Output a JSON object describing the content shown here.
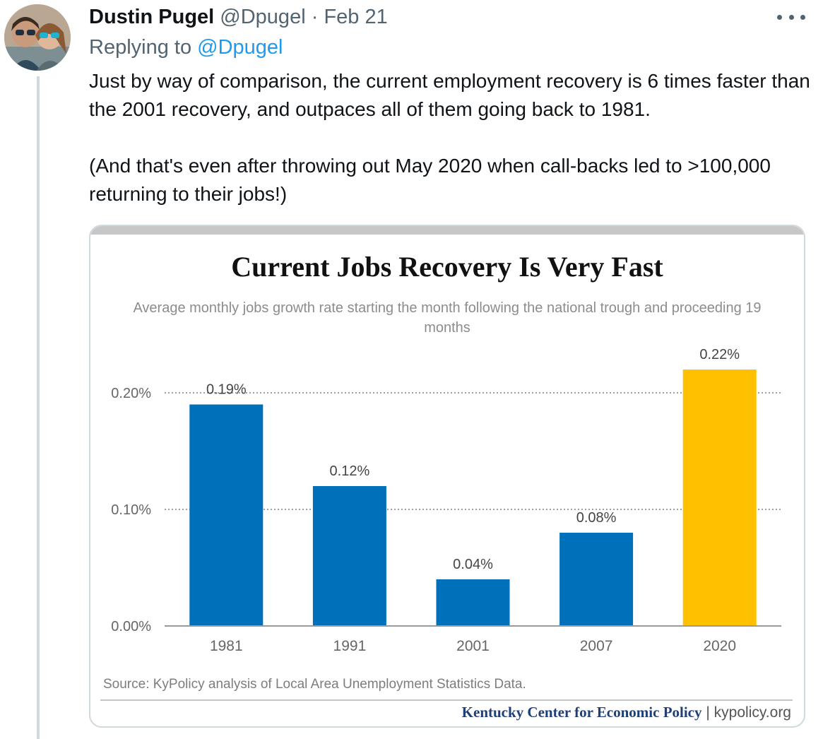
{
  "tweet": {
    "author_name": "Dustin Pugel",
    "author_handle": "@Dpugel",
    "separator": "·",
    "date": "Feb 21",
    "replying_prefix": "Replying to",
    "replying_handle": "@Dpugel",
    "paragraph_1": "Just by way of comparison, the current employment recovery is 6 times faster than the 2001 recovery, and outpaces all of them going back to 1981.",
    "paragraph_2": "(And that's even after throwing out May 2020 when call-backs led to >100,000 returning to their jobs!)",
    "more_icon": "more-horizontal-icon"
  },
  "chart_data": {
    "type": "bar",
    "title": "Current Jobs Recovery Is Very Fast",
    "subtitle": "Average monthly jobs growth rate starting the month following the national trough and proceeding 19 months",
    "categories": [
      "1981",
      "1991",
      "2001",
      "2007",
      "2020"
    ],
    "values": [
      0.19,
      0.12,
      0.04,
      0.08,
      0.22
    ],
    "value_labels": [
      "0.19%",
      "0.12%",
      "0.04%",
      "0.08%",
      "0.22%"
    ],
    "colors": [
      "#0070ba",
      "#0070ba",
      "#0070ba",
      "#0070ba",
      "#ffc000"
    ],
    "yticks": [
      0,
      0.1,
      0.2
    ],
    "ytick_labels": [
      "0.00%",
      "0.10%",
      "0.20%"
    ],
    "ylim": [
      0,
      0.2
    ],
    "grid": true,
    "source": "Source: KyPolicy analysis of Local Area Unemployment Statistics Data.",
    "footer_org": "Kentucky Center for Economic Policy",
    "footer_sep": "|",
    "footer_site": "kypolicy.org"
  }
}
